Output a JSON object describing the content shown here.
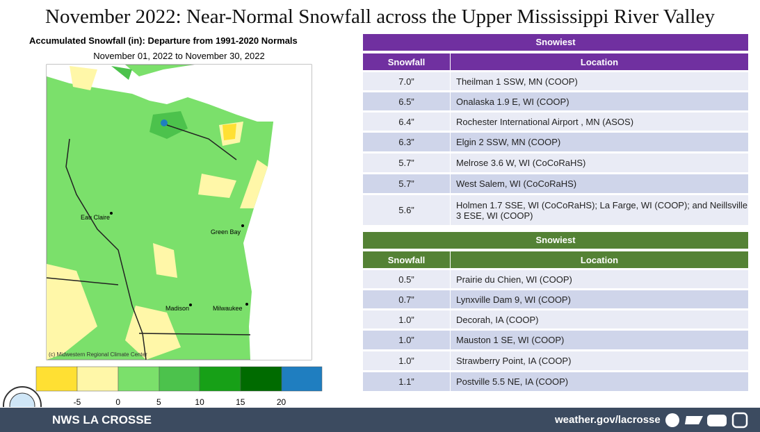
{
  "header": {
    "title": "November 2022:  Near-Normal Snowfall across the Upper Mississippi River Valley"
  },
  "map": {
    "title": "Accumulated Snowfall (in): Departure from 1991-2020 Normals",
    "dates": "November 01, 2022 to November 30, 2022",
    "cities": [
      "Eau Claire",
      "Green Bay",
      "Madison",
      "Milwaukee"
    ],
    "credit": "(c) Midwestern Regional Climate Center",
    "legend": [
      -5,
      0,
      5,
      10,
      15,
      20
    ]
  },
  "tables": [
    {
      "title": "Snowiest",
      "columns": [
        "Snowfall",
        "Location"
      ],
      "rows": [
        [
          "7.0”",
          "Theilman 1 SSW, MN (COOP)"
        ],
        [
          "6.5”",
          "Onalaska 1.9 E, WI (COOP)"
        ],
        [
          "6.4”",
          "Rochester International  Airport , MN (ASOS)"
        ],
        [
          "6.3”",
          "Elgin 2 SSW, MN (COOP)"
        ],
        [
          "5.7”",
          "Melrose 3.6 W, WI (CoCoRaHS)"
        ],
        [
          "5.7”",
          "West Salem, WI (CoCoRaHS)"
        ],
        [
          "5.6”",
          "Holmen 1.7 SSE, WI (CoCoRaHS); La Farge, WI (COOP); and Neillsville 3 ESE, WI (COOP)"
        ]
      ]
    },
    {
      "title": "Snowiest",
      "columns": [
        "Snowfall",
        "Location"
      ],
      "rows": [
        [
          "0.5”",
          "Prairie du  Chien, WI  (COOP)"
        ],
        [
          "0.7”",
          "Lynxville Dam 9, WI (COOP)"
        ],
        [
          "1.0”",
          "Decorah, IA (COOP)"
        ],
        [
          "1.0”",
          "Mauston 1 SE, WI (COOP)"
        ],
        [
          "1.0”",
          "Strawberry Point, IA (COOP)"
        ],
        [
          "1.1”",
          "Postville  5.5 NE, IA  (COOP)"
        ]
      ]
    }
  ],
  "footer": {
    "office": "NWS LA CROSSE",
    "url": "weather.gov/lacrosse"
  }
}
